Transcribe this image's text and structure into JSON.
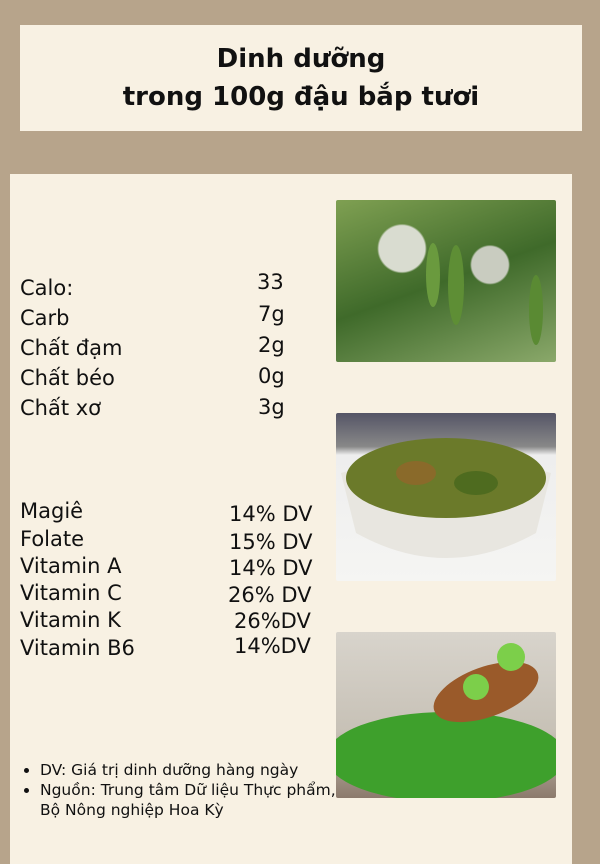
{
  "title": {
    "line1": "Dinh dưỡng",
    "line2": "trong 100g đậu bắp tươi"
  },
  "macros": [
    {
      "label": "Calo:",
      "value": "33"
    },
    {
      "label": "Carb",
      "value": "7g"
    },
    {
      "label": "Chất đạm",
      "value": "2g"
    },
    {
      "label": "Chất béo",
      "value": "0g"
    },
    {
      "label": "Chất xơ",
      "value": "3g"
    }
  ],
  "micros": [
    {
      "label": "Magiê",
      "value": "14% DV"
    },
    {
      "label": "Folate",
      "value": "15% DV"
    },
    {
      "label": "Vitamin A",
      "value": "14% DV"
    },
    {
      "label": "Vitamin C",
      "value": "26% DV"
    },
    {
      "label": "Vitamin K",
      "value": "26%DV"
    },
    {
      "label": "Vitamin B6",
      "value": "14%DV"
    }
  ],
  "notes": [
    "DV: Giá trị dinh dưỡng hàng ngày",
    "Nguồn: Trung tâm Dữ liệu Thực phẩm, Bộ Nông nghiệp Hoa Kỳ"
  ],
  "colors": {
    "background": "#b7a48b",
    "panel": "#f8f1e3"
  }
}
